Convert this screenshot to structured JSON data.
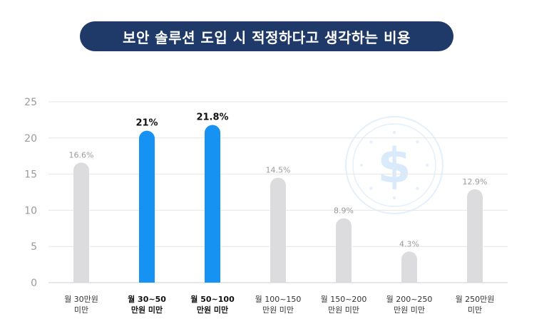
{
  "chart_data": {
    "type": "bar",
    "title": "보안 솔루션 도입 시 적정하다고 생각하는 비용",
    "categories": [
      [
        "월 30만원",
        "미만"
      ],
      [
        "월 30~50",
        "만원 미만"
      ],
      [
        "월 50~100",
        "만원 미만"
      ],
      [
        "월 100~150",
        "만원 미만"
      ],
      [
        "월 150~200",
        "만원 미만"
      ],
      [
        "월 200~250",
        "만원 미만"
      ],
      [
        "월 250만원",
        "미만"
      ]
    ],
    "values": [
      16.6,
      21,
      21.8,
      14.5,
      8.9,
      4.3,
      12.9
    ],
    "value_labels": [
      "16.6%",
      "21%",
      "21.8%",
      "14.5%",
      "8.9%",
      "4.3%",
      "12.9%"
    ],
    "highlighted": [
      false,
      true,
      true,
      false,
      false,
      false,
      false
    ],
    "yticks": [
      "0",
      "5",
      "10",
      "15",
      "20",
      "25"
    ],
    "ylim": [
      0,
      25
    ],
    "grid": true,
    "colors": {
      "bar_default": "#dcdcdf",
      "bar_highlight": "#1592f2",
      "label_default": "#9a9a9a",
      "label_highlight": "#111111",
      "grid": "#e6e6e6",
      "title_bg": "#1f3a68",
      "watermark": "#cfe5f8"
    },
    "watermark_icon": "dollar-clock-icon"
  }
}
